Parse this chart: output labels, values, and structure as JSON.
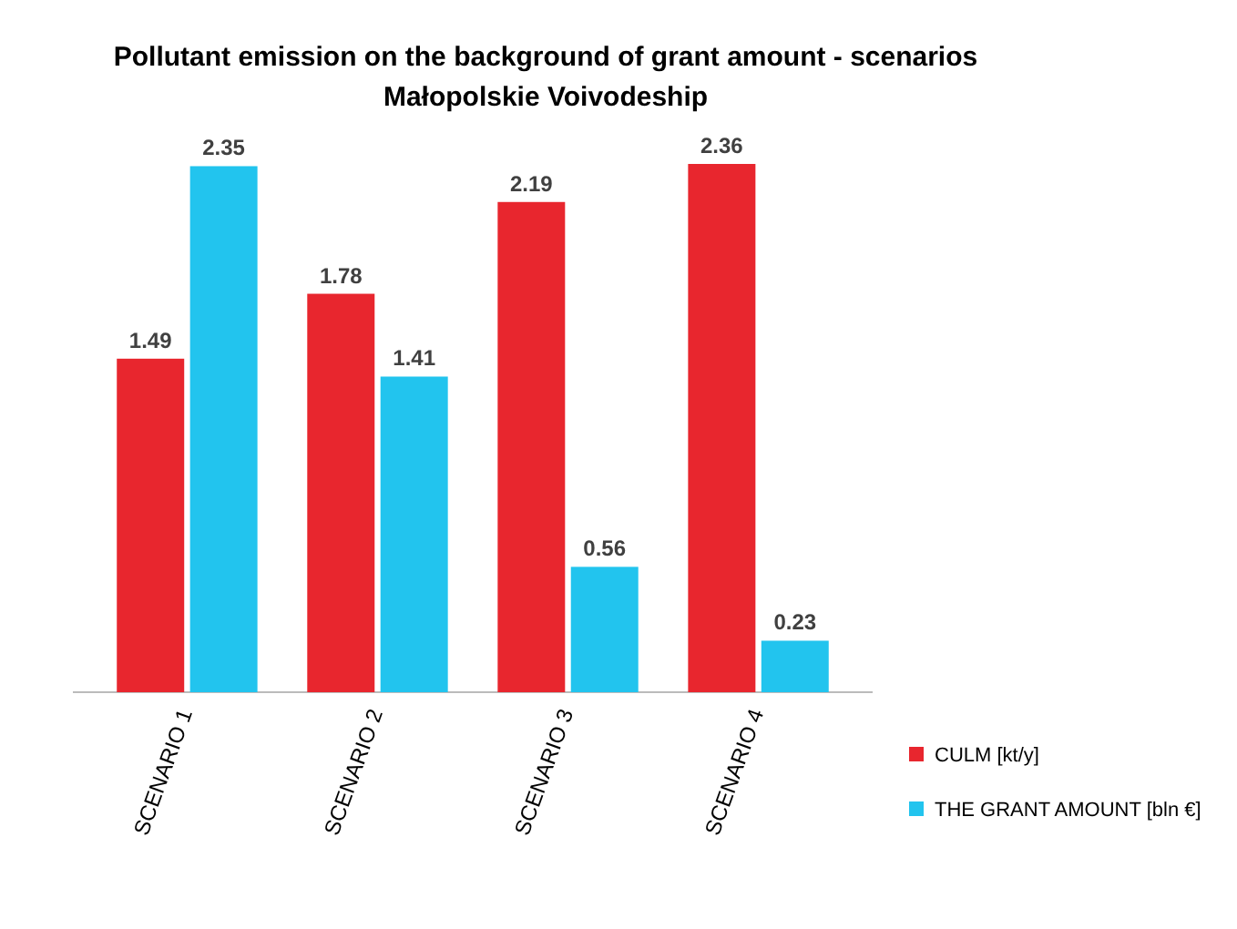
{
  "chart_data": {
    "type": "bar",
    "title": "Pollutant emission on the background of grant amount - scenarios",
    "subtitle": "Małopolskie Voivodeship",
    "categories": [
      "SCENARIO 1",
      "SCENARIO 2",
      "SCENARIO 3",
      "SCENARIO 4"
    ],
    "series": [
      {
        "name": "CULM [kt/y]",
        "color": "#e8262e",
        "values": [
          1.49,
          1.78,
          2.19,
          2.36
        ]
      },
      {
        "name": "THE GRANT AMOUNT [bln €]",
        "color": "#22c4ee",
        "values": [
          2.35,
          1.41,
          0.56,
          0.23
        ]
      }
    ],
    "data_labels": true,
    "legend": "bottom right",
    "tick_labels": "x"
  }
}
